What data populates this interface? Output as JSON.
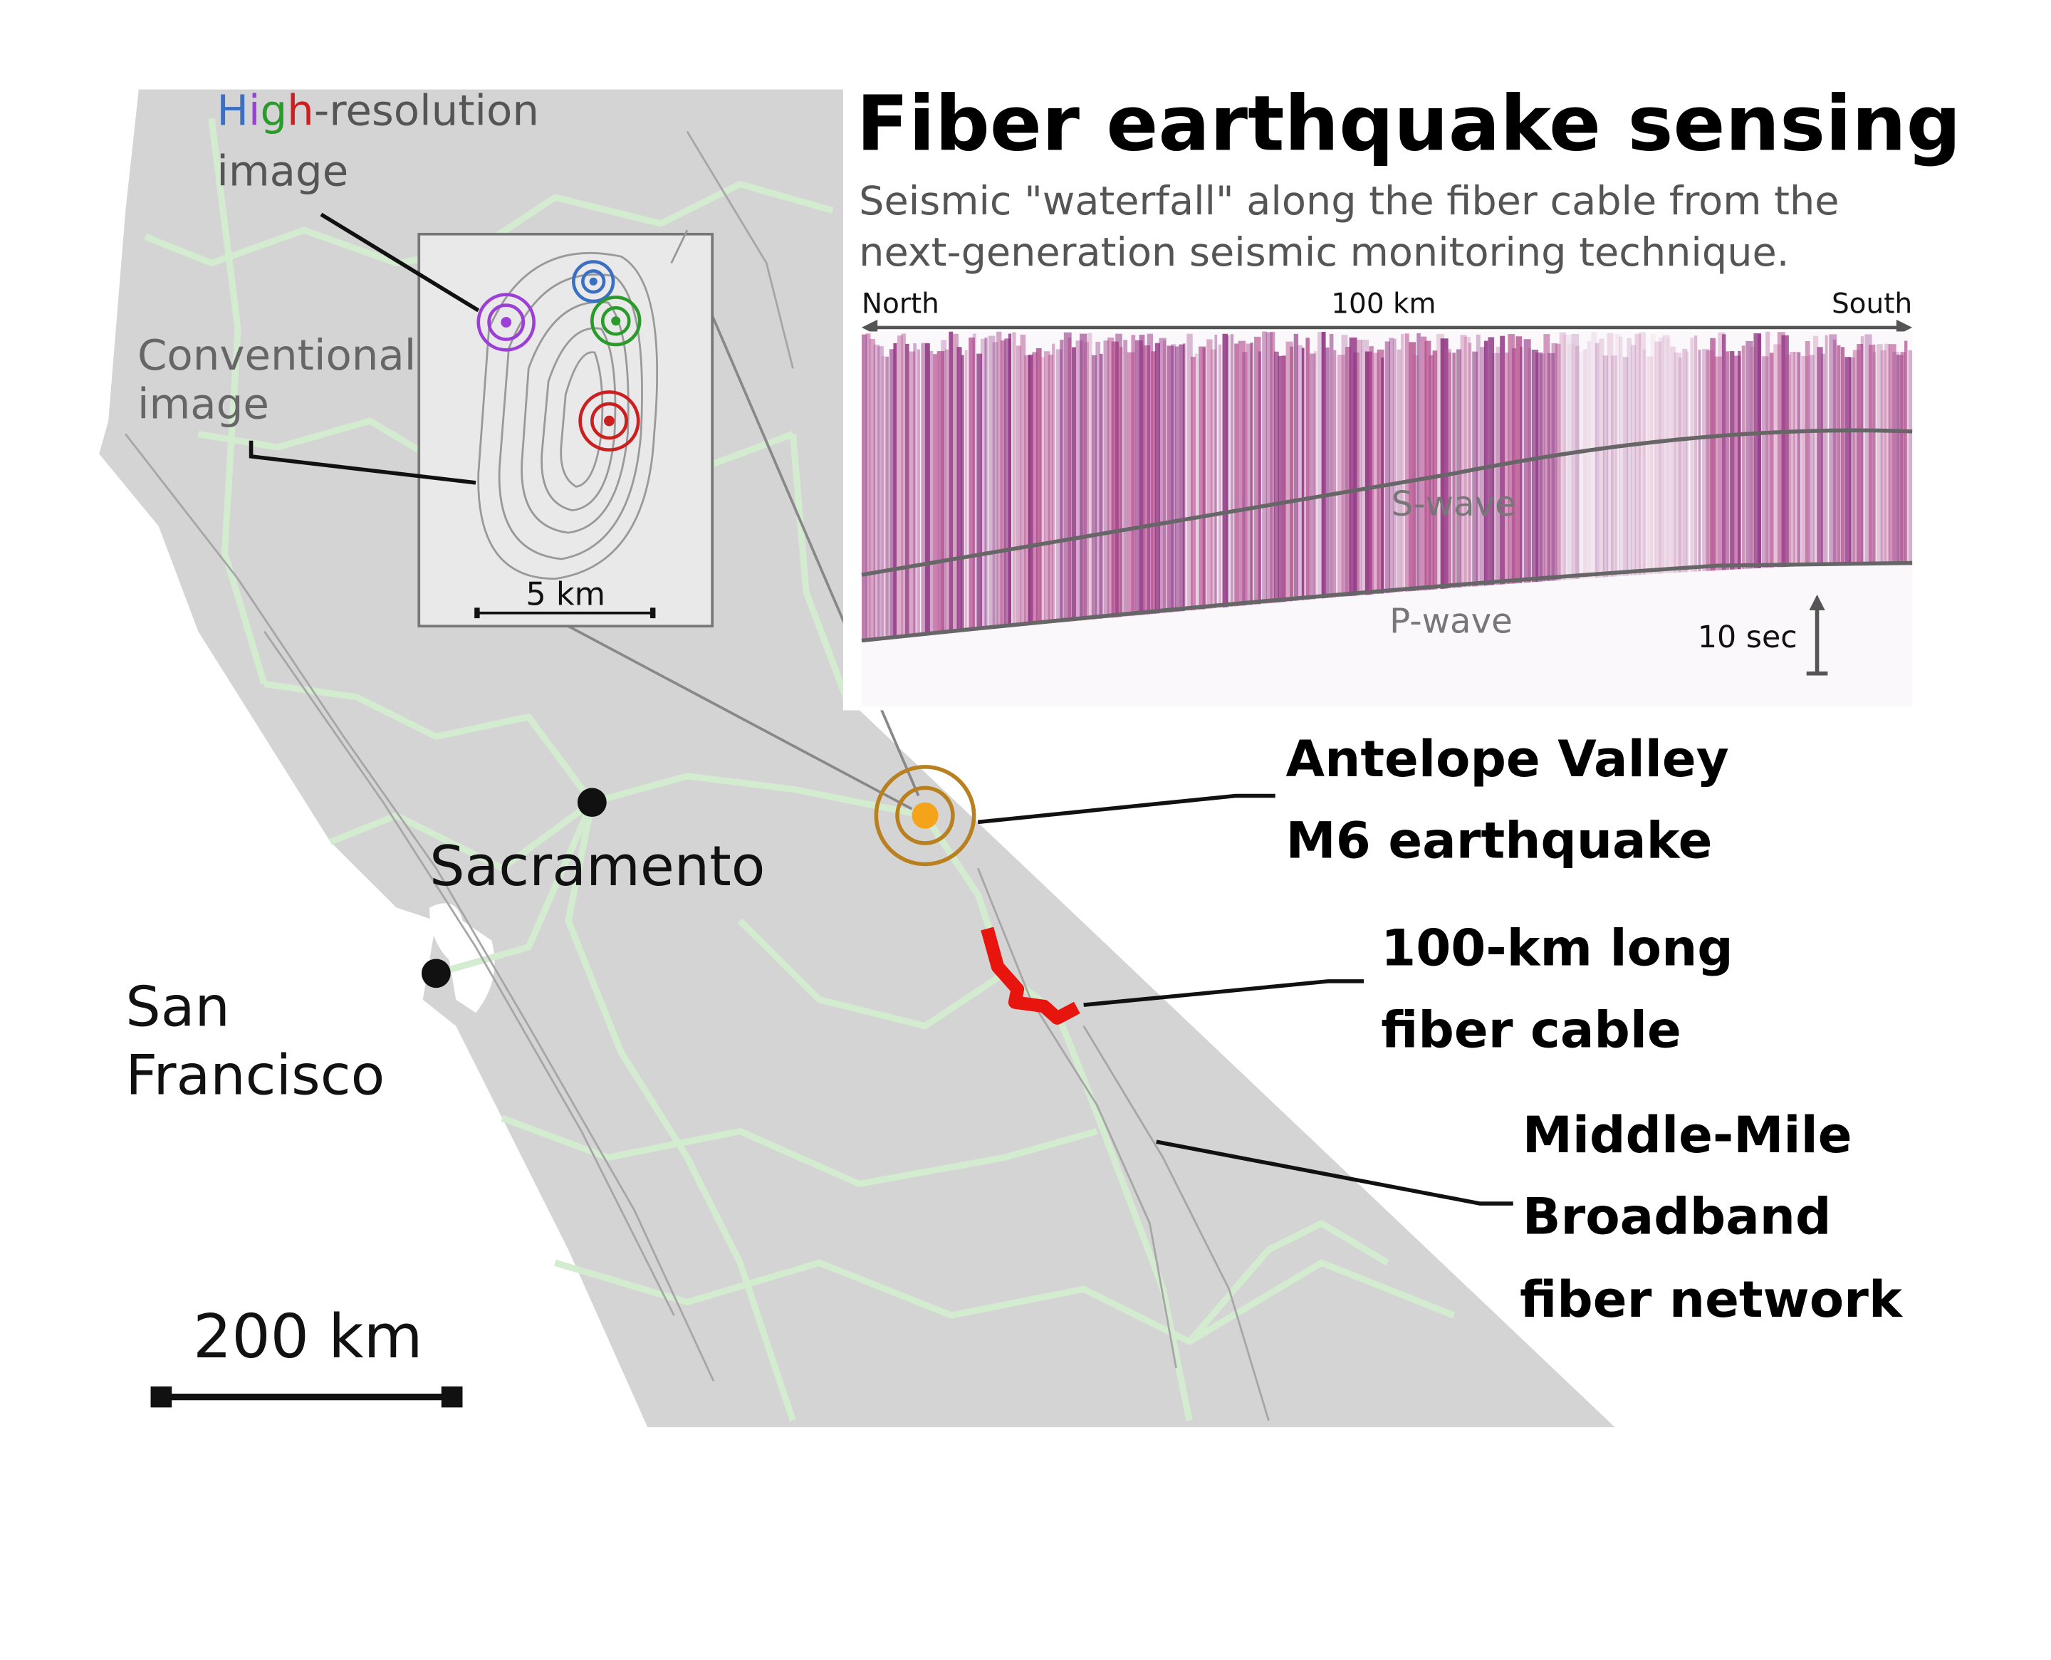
{
  "title": "Fiber earthquake sensing",
  "subtitle": [
    "Seismic \"waterfall\" along the fiber cable from the",
    "next-generation seismic monitoring technique."
  ],
  "waterfall": {
    "left": "North",
    "distance": "100 km",
    "right": "South",
    "s_wave": "S-wave",
    "p_wave": "P-wave",
    "time_scale": "10 sec"
  },
  "inset": {
    "high_res": [
      "H",
      "i",
      "g",
      "h",
      "-resolution"
    ],
    "high_res_line2": "image",
    "conventional": [
      "Conventional",
      "image"
    ],
    "scale": "5 km"
  },
  "map": {
    "sacramento": "Sacramento",
    "san_francisco": [
      "San",
      "Francisco"
    ],
    "scale": "200 km",
    "earthquake": [
      "Antelope Valley",
      "M6 earthquake"
    ],
    "cable": [
      "100-km long",
      "fiber cable"
    ],
    "network": [
      "Middle-Mile",
      "Broadband",
      "fiber network"
    ]
  }
}
